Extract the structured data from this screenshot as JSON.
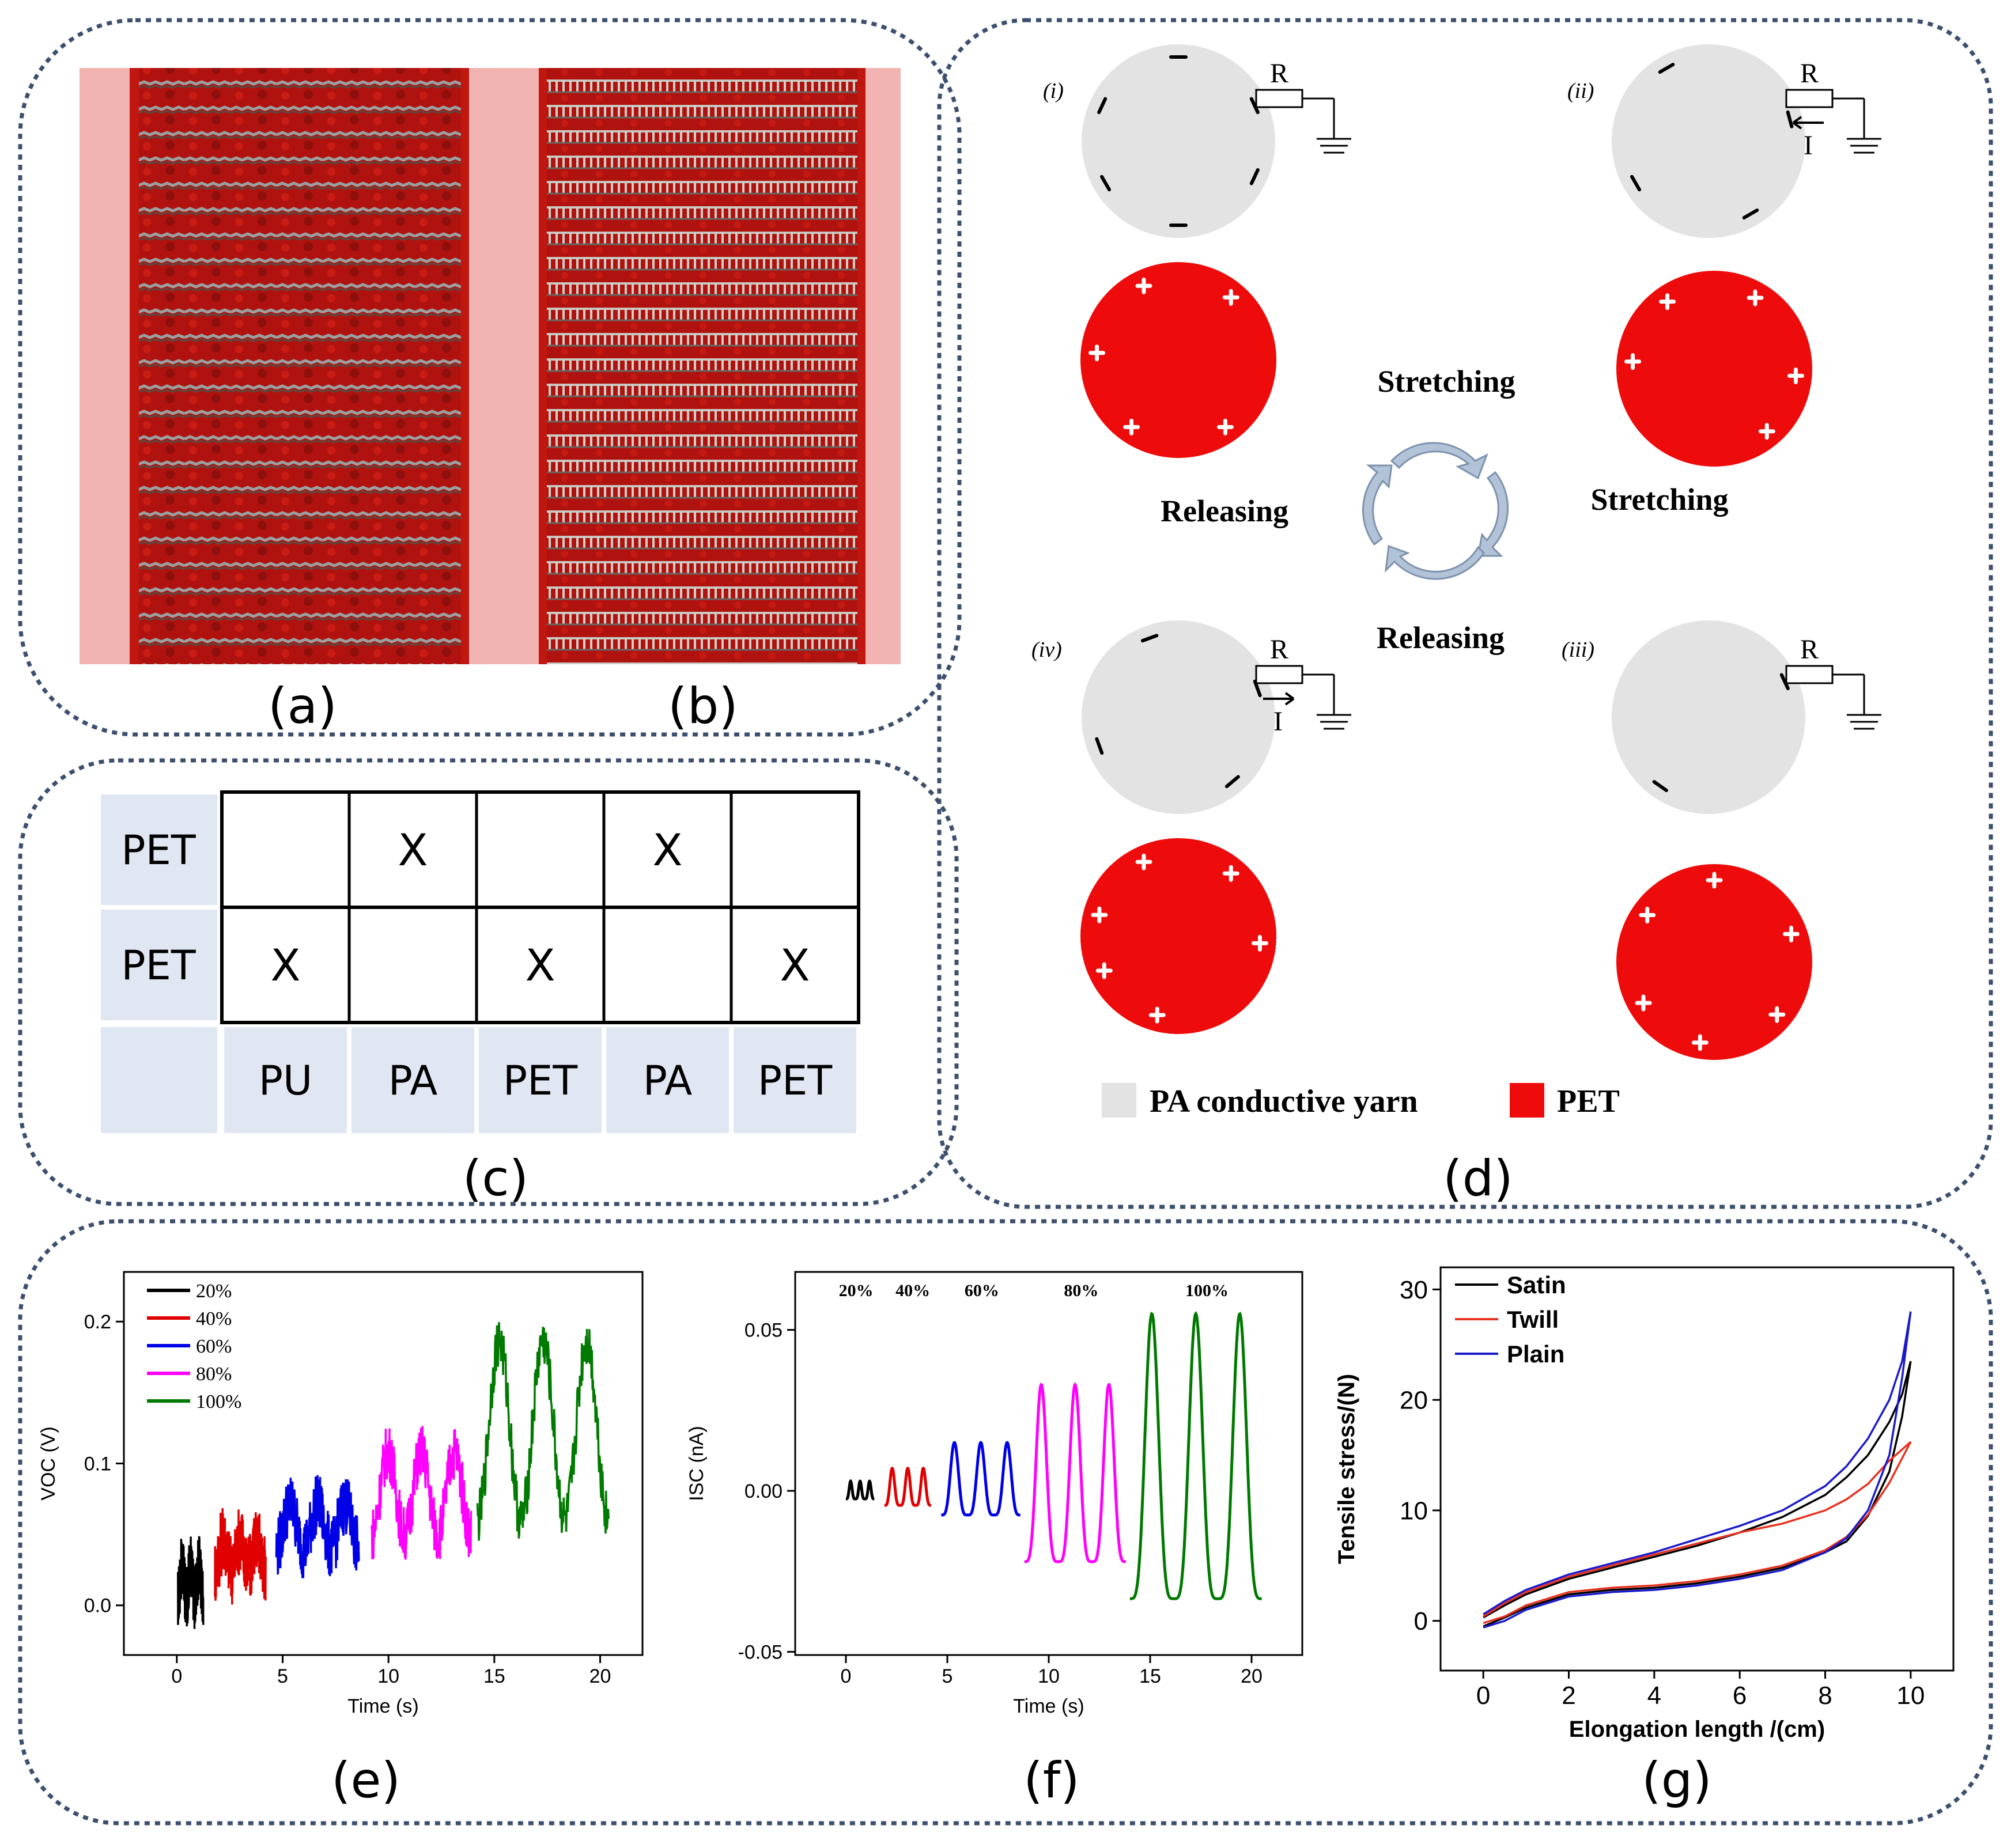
{
  "panel_labels": {
    "a": "(a)",
    "b": "(b)",
    "c": "(c)",
    "d": "(d)",
    "e": "(e)",
    "f": "(f)",
    "g": "(g)"
  },
  "colors": {
    "fabric": "#b0130f",
    "photo_bg": "#f1b4b3",
    "grey": "#e3e3e3",
    "pet": "#ee0b0b",
    "frame": "#3d4f6e",
    "arrow": "#b2c3d8"
  },
  "table_c": {
    "rows": [
      {
        "label": "PET",
        "cells": [
          "",
          "X",
          "",
          "X",
          ""
        ]
      },
      {
        "label": "PET",
        "cells": [
          "X",
          "",
          "X",
          "",
          "X"
        ]
      }
    ],
    "columns": [
      "PU",
      "PA",
      "PET",
      "PA",
      "PET"
    ]
  },
  "diagram_d": {
    "states": [
      "(i)",
      "(ii)",
      "(iii)",
      "(iv)"
    ],
    "resistor": "R",
    "current": "I",
    "cycle": {
      "top": "Stretching",
      "right": "Stretching",
      "bottom": "Releasing",
      "left": "Releasing"
    },
    "legend": {
      "grey": "PA conductive yarn",
      "red": "PET"
    }
  },
  "chart_data": [
    {
      "type": "line",
      "panel": "(e)",
      "xlabel": "Time (s)",
      "ylabel": "VOC (V)",
      "xlim": [
        -2.5,
        22
      ],
      "ylim": [
        -0.035,
        0.235
      ],
      "xticks": [
        0,
        5,
        10,
        15,
        20
      ],
      "xtick_labels": [
        "0",
        "5",
        "10",
        "15",
        "20"
      ],
      "yticks": [
        0.0,
        0.1,
        0.2
      ],
      "ytick_labels": [
        "0.0",
        "0.1",
        "0.2"
      ],
      "series": [
        {
          "name": "20%",
          "color": "#000000",
          "x": [
            0.05,
            1.25
          ],
          "baseline": 0.005,
          "peaks": 3,
          "amplitude": 0.025,
          "noise": 0.022
        },
        {
          "name": "40%",
          "color": "#e00000",
          "x": [
            1.8,
            4.2
          ],
          "baseline": 0.025,
          "peaks": 3,
          "amplitude": 0.025,
          "noise": 0.025
        },
        {
          "name": "60%",
          "color": "#0000e6",
          "x": [
            4.7,
            8.6
          ],
          "baseline": 0.04,
          "peaks": 3,
          "amplitude": 0.035,
          "noise": 0.022
        },
        {
          "name": "80%",
          "color": "#ff00ff",
          "x": [
            9.2,
            13.9
          ],
          "baseline": 0.05,
          "peaks": 3,
          "amplitude": 0.065,
          "noise": 0.02
        },
        {
          "name": "100%",
          "color": "#007a00",
          "x": [
            14.2,
            20.4
          ],
          "baseline": 0.06,
          "peaks": 3,
          "amplitude": 0.14,
          "noise": 0.018
        }
      ],
      "legend": [
        "20%",
        "40%",
        "60%",
        "80%",
        "100%"
      ]
    },
    {
      "type": "line",
      "panel": "(f)",
      "xlabel": "Time (s)",
      "ylabel": "ISC (nA)",
      "xlim": [
        -2.5,
        22.5
      ],
      "ylim": [
        -0.051,
        0.068
      ],
      "xticks": [
        0,
        5,
        10,
        15,
        20
      ],
      "xtick_labels": [
        "0",
        "5",
        "10",
        "15",
        "20"
      ],
      "yticks": [
        -0.05,
        0.0,
        0.05
      ],
      "ytick_labels": [
        "-0.05",
        "0.00",
        "0.05"
      ],
      "series": [
        {
          "name": "20%",
          "color": "#000000",
          "x": [
            0.0,
            1.4
          ],
          "baseline": -0.0025,
          "peaks": 3,
          "amplitude": 0.0055
        },
        {
          "name": "40%",
          "color": "#e00000",
          "x": [
            1.9,
            4.2
          ],
          "baseline": -0.0045,
          "peaks": 3,
          "amplitude": 0.0115
        },
        {
          "name": "60%",
          "color": "#0000e6",
          "x": [
            4.7,
            8.6
          ],
          "baseline": -0.0075,
          "peaks": 3,
          "amplitude": 0.0225
        },
        {
          "name": "80%",
          "color": "#ff00ff",
          "x": [
            8.8,
            13.8
          ],
          "baseline": -0.022,
          "peaks": 3,
          "amplitude": 0.055
        },
        {
          "name": "100%",
          "color": "#007a00",
          "x": [
            14.0,
            20.5
          ],
          "baseline": -0.0335,
          "peaks": 3,
          "amplitude": 0.0885
        }
      ],
      "annotations": [
        {
          "text": "20%",
          "x": 0.5
        },
        {
          "text": "40%",
          "x": 3.3
        },
        {
          "text": "60%",
          "x": 6.7
        },
        {
          "text": "80%",
          "x": 11.6
        },
        {
          "text": "100%",
          "x": 17.8
        }
      ]
    },
    {
      "type": "line",
      "panel": "(g)",
      "xlabel": "Elongation length /(cm)",
      "ylabel": "Tensile stress/(N)",
      "xlim": [
        -1,
        11
      ],
      "ylim": [
        -4.5,
        32
      ],
      "xticks": [
        0,
        2,
        4,
        6,
        8,
        10
      ],
      "xtick_labels": [
        "0",
        "2",
        "4",
        "6",
        "8",
        "10"
      ],
      "yticks": [
        0,
        10,
        20,
        30
      ],
      "ytick_labels": [
        "0",
        "10",
        "20",
        "30"
      ],
      "series": [
        {
          "name": "Satin",
          "color": "#000000",
          "x": [
            0,
            0.5,
            1,
            2,
            3,
            4,
            5,
            6,
            7,
            8,
            8.5,
            9,
            9.5,
            9.8,
            10,
            10,
            9.8,
            9.5,
            9,
            8.5,
            8,
            7,
            6,
            5,
            4,
            3,
            2,
            1,
            0.5,
            0
          ],
          "y": [
            0.3,
            1.4,
            2.4,
            3.8,
            4.8,
            5.8,
            6.8,
            8.0,
            9.4,
            11.4,
            13.0,
            15.0,
            18.0,
            20.5,
            23.5,
            23.5,
            18.5,
            13.5,
            9.5,
            7.2,
            6.2,
            4.8,
            4.0,
            3.4,
            3.0,
            2.8,
            2.4,
            1.2,
            0.3,
            -0.5
          ]
        },
        {
          "name": "Twill",
          "color": "#e8321f",
          "x": [
            0,
            0.5,
            1,
            2,
            3,
            4,
            5,
            6,
            7,
            8,
            8.5,
            9,
            9.5,
            10,
            10,
            9.5,
            9,
            8.5,
            8,
            7,
            6,
            5,
            4,
            3,
            2,
            1,
            0.5,
            0
          ],
          "y": [
            0.4,
            1.6,
            2.6,
            4.0,
            5.0,
            6.0,
            7.0,
            8.0,
            8.8,
            10.0,
            11.0,
            12.4,
            14.5,
            16.2,
            16.2,
            12.5,
            9.6,
            7.6,
            6.4,
            5.0,
            4.2,
            3.6,
            3.2,
            3.0,
            2.6,
            1.4,
            0.4,
            -0.2
          ]
        },
        {
          "name": "Plain",
          "color": "#1a1acc",
          "x": [
            0,
            0.5,
            1,
            2,
            3,
            4,
            5,
            6,
            7,
            8,
            8.5,
            9,
            9.5,
            9.8,
            10,
            10,
            9.8,
            9.5,
            9,
            8.5,
            8,
            7,
            6,
            5,
            4,
            3,
            2,
            1,
            0.5,
            0
          ],
          "y": [
            0.6,
            1.8,
            2.8,
            4.2,
            5.2,
            6.2,
            7.4,
            8.6,
            10.0,
            12.2,
            14.0,
            16.5,
            20.0,
            23.5,
            28.0,
            28.0,
            22.0,
            15.0,
            10.0,
            7.5,
            6.2,
            4.6,
            3.8,
            3.2,
            2.8,
            2.6,
            2.2,
            1.0,
            0.0,
            -0.6
          ]
        }
      ],
      "legend": [
        "Satin",
        "Twill",
        "Plain"
      ]
    }
  ]
}
